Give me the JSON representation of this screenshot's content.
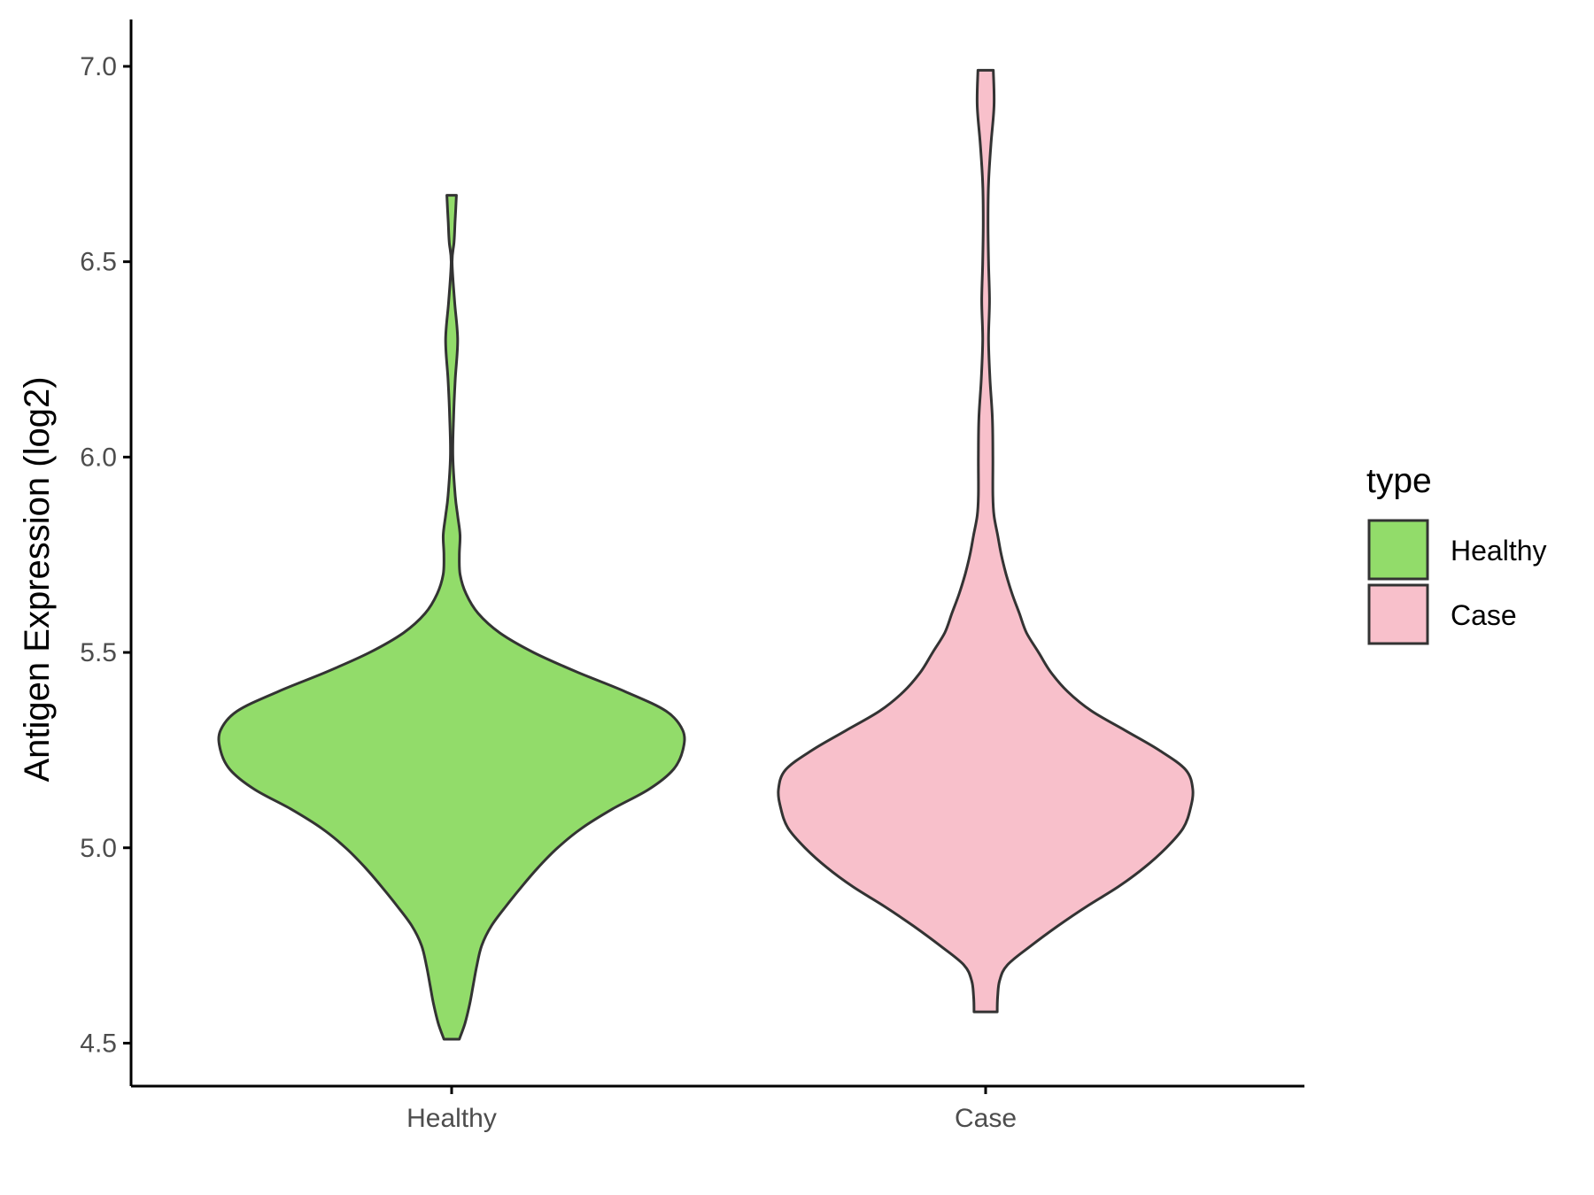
{
  "chart_data": {
    "type": "violin",
    "ylabel": "Antigen Expression (log2)",
    "xlabel": "",
    "ylim": [
      4.39,
      7.12
    ],
    "yticks": [
      4.5,
      5.0,
      5.5,
      6.0,
      6.5,
      7.0
    ],
    "ytick_labels": [
      "4.5",
      "5.0",
      "5.5",
      "6.0",
      "6.5",
      "7.0"
    ],
    "categories": [
      "Healthy",
      "Case"
    ],
    "grid": false,
    "legend": {
      "title": "type",
      "position": "right",
      "entries": [
        {
          "label": "Healthy",
          "color": "#92DC6A"
        },
        {
          "label": "Case",
          "color": "#F8C0CB"
        }
      ]
    },
    "series": [
      {
        "category": "Healthy",
        "color": "#92DC6A",
        "min": 4.51,
        "max": 6.67,
        "density": [
          [
            4.51,
            0.032
          ],
          [
            4.55,
            0.055
          ],
          [
            4.6,
            0.075
          ],
          [
            4.65,
            0.09
          ],
          [
            4.7,
            0.105
          ],
          [
            4.75,
            0.125
          ],
          [
            4.8,
            0.165
          ],
          [
            4.85,
            0.225
          ],
          [
            4.9,
            0.29
          ],
          [
            4.95,
            0.36
          ],
          [
            5.0,
            0.44
          ],
          [
            5.05,
            0.54
          ],
          [
            5.1,
            0.67
          ],
          [
            5.15,
            0.82
          ],
          [
            5.2,
            0.92
          ],
          [
            5.25,
            0.96
          ],
          [
            5.3,
            0.96
          ],
          [
            5.35,
            0.89
          ],
          [
            5.4,
            0.72
          ],
          [
            5.45,
            0.52
          ],
          [
            5.5,
            0.34
          ],
          [
            5.55,
            0.2
          ],
          [
            5.6,
            0.11
          ],
          [
            5.65,
            0.06
          ],
          [
            5.7,
            0.035
          ],
          [
            5.75,
            0.032
          ],
          [
            5.8,
            0.035
          ],
          [
            5.85,
            0.025
          ],
          [
            5.9,
            0.015
          ],
          [
            6.0,
            0.005
          ],
          [
            6.1,
            0.008
          ],
          [
            6.2,
            0.015
          ],
          [
            6.3,
            0.025
          ],
          [
            6.4,
            0.012
          ],
          [
            6.5,
            0.002
          ],
          [
            6.55,
            0.01
          ],
          [
            6.6,
            0.014
          ],
          [
            6.67,
            0.02
          ]
        ]
      },
      {
        "category": "Case",
        "color": "#F8C0CB",
        "min": 4.58,
        "max": 6.99,
        "density": [
          [
            4.58,
            0.048
          ],
          [
            4.62,
            0.05
          ],
          [
            4.66,
            0.058
          ],
          [
            4.7,
            0.09
          ],
          [
            4.75,
            0.19
          ],
          [
            4.8,
            0.3
          ],
          [
            4.85,
            0.42
          ],
          [
            4.9,
            0.55
          ],
          [
            4.95,
            0.66
          ],
          [
            5.0,
            0.75
          ],
          [
            5.05,
            0.82
          ],
          [
            5.1,
            0.85
          ],
          [
            5.15,
            0.86
          ],
          [
            5.2,
            0.83
          ],
          [
            5.25,
            0.72
          ],
          [
            5.3,
            0.58
          ],
          [
            5.35,
            0.44
          ],
          [
            5.4,
            0.34
          ],
          [
            5.45,
            0.27
          ],
          [
            5.5,
            0.22
          ],
          [
            5.55,
            0.17
          ],
          [
            5.6,
            0.14
          ],
          [
            5.65,
            0.11
          ],
          [
            5.7,
            0.085
          ],
          [
            5.75,
            0.065
          ],
          [
            5.8,
            0.05
          ],
          [
            5.85,
            0.035
          ],
          [
            5.9,
            0.03
          ],
          [
            6.0,
            0.03
          ],
          [
            6.1,
            0.028
          ],
          [
            6.2,
            0.018
          ],
          [
            6.3,
            0.012
          ],
          [
            6.4,
            0.016
          ],
          [
            6.5,
            0.012
          ],
          [
            6.6,
            0.01
          ],
          [
            6.7,
            0.012
          ],
          [
            6.8,
            0.022
          ],
          [
            6.9,
            0.035
          ],
          [
            6.99,
            0.032
          ]
        ]
      }
    ]
  }
}
